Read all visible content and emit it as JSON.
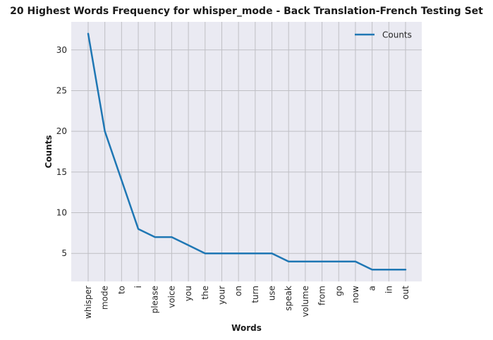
{
  "chart_data": {
    "type": "line",
    "title": "20 Highest Words Frequency for whisper_mode - Back Translation-French Testing Set",
    "xlabel": "Words",
    "ylabel": "Counts",
    "categories": [
      "whisper",
      "mode",
      "to",
      "i",
      "please",
      "voice",
      "you",
      "the",
      "your",
      "on",
      "turn",
      "use",
      "speak",
      "volume",
      "from",
      "go",
      "now",
      "a",
      "in",
      "out"
    ],
    "series": [
      {
        "name": "Counts",
        "values": [
          32,
          20,
          14,
          8,
          7,
          7,
          6,
          5,
          5,
          5,
          5,
          5,
          4,
          4,
          4,
          4,
          4,
          3,
          3,
          3
        ]
      }
    ],
    "ylim": [
      1.55,
      33.45
    ],
    "yticks": [
      5,
      10,
      15,
      20,
      25,
      30
    ],
    "grid": true,
    "legend_position": "top-right",
    "colors": {
      "line": "#1f77b4",
      "plot_background": "#eaeaf2",
      "grid": "#bfbfc4"
    }
  }
}
